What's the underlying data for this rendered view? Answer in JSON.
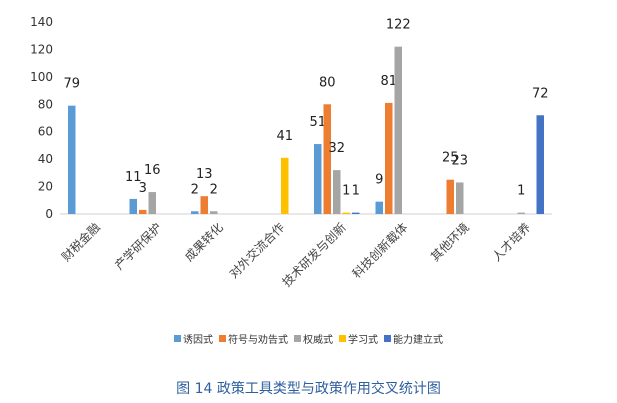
{
  "caption": "图 14 政策工具类型与政策作用交叉统计图",
  "chart_data": {
    "type": "bar",
    "categories": [
      "财税金融",
      "产学研保护",
      "成果转化",
      "对外交流合作",
      "技术研发与创新",
      "科技创新载体",
      "其他环境",
      "人才培养"
    ],
    "series": [
      {
        "name": "诱因式",
        "color": "#5b9bd5",
        "values": [
          79,
          11,
          2,
          0,
          51,
          9,
          0,
          0
        ]
      },
      {
        "name": "符号与劝告式",
        "color": "#ed7d31",
        "values": [
          0,
          3,
          13,
          0,
          80,
          81,
          25,
          0
        ]
      },
      {
        "name": "权威式",
        "color": "#a5a5a5",
        "values": [
          0,
          16,
          2,
          0,
          32,
          122,
          23,
          1
        ]
      },
      {
        "name": "学习式",
        "color": "#ffc000",
        "values": [
          0,
          0,
          0,
          41,
          1,
          0,
          0,
          0
        ]
      },
      {
        "name": "能力建立式",
        "color": "#4472c4",
        "values": [
          0,
          0,
          0,
          0,
          1,
          0,
          0,
          72
        ]
      }
    ],
    "ylim": [
      0,
      140
    ],
    "yticks": [
      0,
      20,
      40,
      60,
      80,
      100,
      120,
      140
    ],
    "legend_position": "bottom",
    "grid": false
  }
}
